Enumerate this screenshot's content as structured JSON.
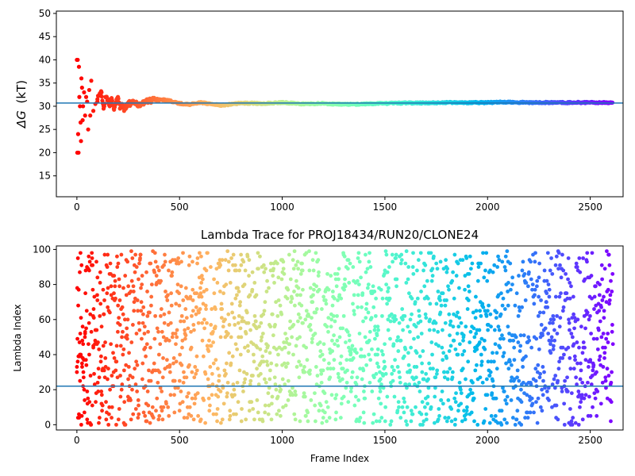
{
  "chart_data": [
    {
      "type": "scatter",
      "title": "",
      "xlabel": "",
      "ylabel": "ΔG (kT)",
      "ylabel_symbol": "ΔG",
      "ylabel_unit": "(kT)",
      "xlim": [
        -100,
        2660
      ],
      "ylim": [
        10.5,
        50.5
      ],
      "xticks": [
        0,
        500,
        1000,
        1500,
        2000,
        2500
      ],
      "yticks": [
        15,
        20,
        25,
        30,
        35,
        40,
        45,
        50
      ],
      "grid": false,
      "hline": 30.7,
      "hline_color": "#1f77b4",
      "colormap": "rainbow (red at start to violet at end)",
      "series": [
        {
          "x": [
            0,
            2,
            4,
            6,
            8,
            10,
            12,
            15,
            18,
            20,
            22,
            25,
            28,
            30,
            35,
            40,
            45,
            50,
            55,
            60,
            65,
            70,
            80,
            90,
            100,
            110,
            120,
            130,
            140,
            150,
            160,
            170,
            180,
            190,
            200,
            210,
            220,
            230,
            240,
            250,
            270,
            300,
            330,
            360,
            400,
            450,
            500,
            550,
            600,
            650,
            700,
            750,
            800,
            900,
            1000,
            1100,
            1200,
            1300,
            1400,
            1500,
            1600,
            1700,
            1800,
            1900,
            2000,
            2100,
            2200,
            2300,
            2400,
            2500,
            2600
          ],
          "y": [
            40,
            20,
            40,
            24,
            20,
            38.5,
            32,
            30,
            26.5,
            22.5,
            36,
            34,
            27,
            30,
            33,
            28,
            32,
            31,
            25,
            33.5,
            28,
            35.5,
            29,
            30.5,
            31.5,
            32.5,
            33,
            29.5,
            32,
            31.5,
            30,
            31.5,
            29.5,
            30.5,
            32,
            29.5,
            30.5,
            29,
            30,
            30.5,
            30.8,
            30.2,
            31,
            31.3,
            31.5,
            31.2,
            30.6,
            30.4,
            30.8,
            30.5,
            30.2,
            30.4,
            30.7,
            30.6,
            30.8,
            30.5,
            30.6,
            30.4,
            30.5,
            30.6,
            30.7,
            30.7,
            30.8,
            30.8,
            30.8,
            30.9,
            30.8,
            30.8,
            30.8,
            30.8,
            30.8
          ]
        }
      ]
    },
    {
      "type": "scatter",
      "title": "Lambda Trace for PROJ18434/RUN20/CLONE24",
      "xlabel": "Frame Index",
      "ylabel": "Lambda Index",
      "xlim": [
        -100,
        2660
      ],
      "ylim": [
        -3,
        102
      ],
      "xticks": [
        0,
        500,
        1000,
        1500,
        2000,
        2500
      ],
      "yticks": [
        0,
        20,
        40,
        60,
        80,
        100
      ],
      "grid": false,
      "hline": 22,
      "hline_color": "#1f77b4",
      "colormap": "rainbow (red at start to violet at end)",
      "n_frames": 2610,
      "lambda_range": [
        0,
        99
      ],
      "series": [
        {
          "x": [
            0,
            5,
            10,
            15,
            20,
            25,
            30,
            40,
            50,
            60,
            80,
            100,
            120,
            150,
            200,
            250,
            300,
            400,
            500,
            600,
            700,
            800,
            900,
            1000,
            1100,
            1200,
            1300,
            1400,
            1500,
            1600,
            1700,
            1800,
            1900,
            2000,
            2100,
            2200,
            2300,
            2400,
            2500,
            2600
          ],
          "y": [
            30,
            95,
            6,
            40,
            61,
            35,
            22,
            52,
            3,
            88,
            45,
            71,
            12,
            97,
            58,
            26,
            83,
            40,
            8,
            66,
            19,
            91,
            50,
            34,
            77,
            4,
            62,
            15,
            88,
            43,
            29,
            71,
            10,
            57,
            93,
            24,
            48,
            81,
            36,
            2
          ]
        }
      ]
    }
  ]
}
